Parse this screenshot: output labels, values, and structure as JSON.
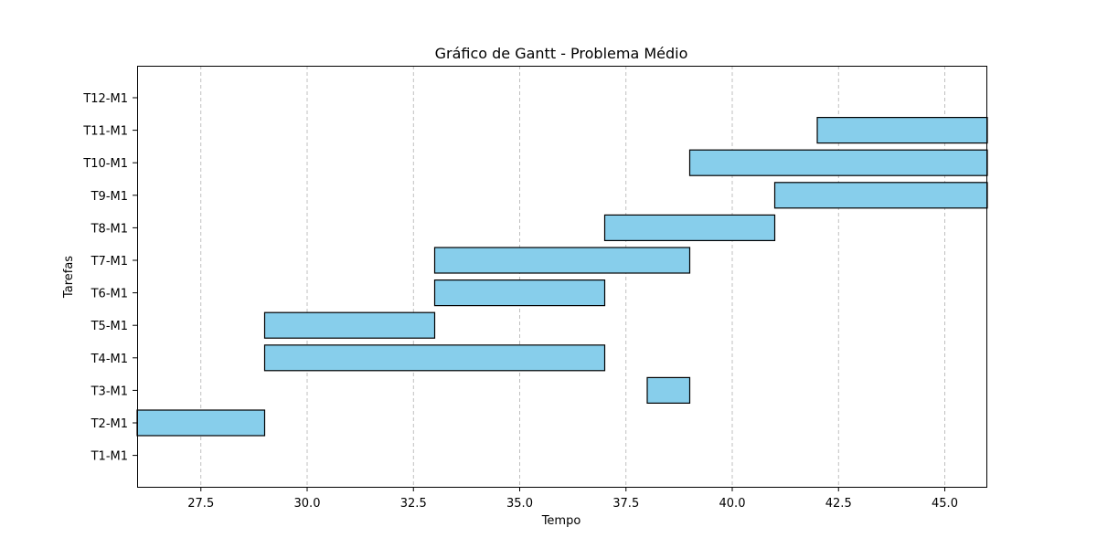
{
  "chart_data": {
    "type": "bar",
    "orientation": "horizontal",
    "title": "Gráfico de Gantt - Problema Médio",
    "xlabel": "Tempo",
    "ylabel": "Tarefas",
    "xlim": [
      26,
      46
    ],
    "x_ticks": [
      27.5,
      30.0,
      32.5,
      35.0,
      37.5,
      40.0,
      42.5,
      45.0
    ],
    "x_tick_labels": [
      "27.5",
      "30.0",
      "32.5",
      "35.0",
      "37.5",
      "40.0",
      "42.5",
      "45.0"
    ],
    "x_grid": true,
    "grid_style": "dashed",
    "categories": [
      "T1-M1",
      "T2-M1",
      "T3-M1",
      "T4-M1",
      "T5-M1",
      "T6-M1",
      "T7-M1",
      "T8-M1",
      "T9-M1",
      "T10-M1",
      "T11-M1",
      "T12-M1"
    ],
    "tasks": [
      {
        "task": "T1-M1",
        "start": null,
        "end": null
      },
      {
        "task": "T2-M1",
        "start": 26,
        "end": 29
      },
      {
        "task": "T3-M1",
        "start": 38,
        "end": 39
      },
      {
        "task": "T4-M1",
        "start": 29,
        "end": 37
      },
      {
        "task": "T5-M1",
        "start": 29,
        "end": 33
      },
      {
        "task": "T6-M1",
        "start": 33,
        "end": 37
      },
      {
        "task": "T7-M1",
        "start": 33,
        "end": 39
      },
      {
        "task": "T8-M1",
        "start": 37,
        "end": 41
      },
      {
        "task": "T9-M1",
        "start": 41,
        "end": 46
      },
      {
        "task": "T10-M1",
        "start": 39,
        "end": 46
      },
      {
        "task": "T11-M1",
        "start": 42,
        "end": 46
      },
      {
        "task": "T12-M1",
        "start": null,
        "end": null
      }
    ],
    "bar_color": "#87ceeb",
    "bar_edge_color": "#000000",
    "grid_color": "#b0b0b0"
  }
}
